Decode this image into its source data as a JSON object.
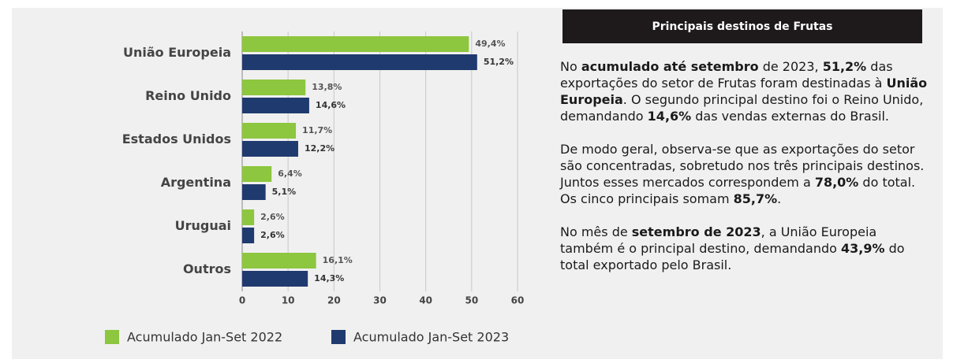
{
  "chart_data": {
    "type": "barh",
    "categories": [
      "União Europeia",
      "Reino Unido",
      "Estados Unidos",
      "Argentina",
      "Uruguai",
      "Outros"
    ],
    "series": [
      {
        "name": "Acumulado Jan-Set 2022",
        "color": "#8dc63f",
        "values": [
          49.4,
          13.8,
          11.7,
          6.4,
          2.6,
          16.1
        ],
        "value_labels": [
          "49,4%",
          "13,8%",
          "11,7%",
          "6,4%",
          "2,6%",
          "16,1%"
        ]
      },
      {
        "name": "Acumulado Jan-Set 2023",
        "color": "#1f3a6e",
        "values": [
          51.2,
          14.6,
          12.2,
          5.1,
          2.6,
          14.3
        ],
        "value_labels": [
          "51,2%",
          "14,6%",
          "12,2%",
          "5,1%",
          "2,6%",
          "14,3%"
        ]
      }
    ],
    "xlim": [
      0,
      60
    ],
    "xticks": [
      0,
      10,
      20,
      30,
      40,
      50,
      60
    ],
    "grid": true,
    "legend": "bottom"
  },
  "panel": {
    "title": "Principais destinos de Frutas",
    "paragraphs": [
      [
        {
          "text": "No ",
          "bold": false
        },
        {
          "text": "acumulado até setembro",
          "bold": true
        },
        {
          "text": " de 2023, ",
          "bold": false
        },
        {
          "text": "51,2%",
          "bold": true
        },
        {
          "text": " das exportações do setor de Frutas foram destinadas à ",
          "bold": false
        },
        {
          "text": "União Europeia",
          "bold": true
        },
        {
          "text": ". O segundo principal destino foi o Reino Unido, demandando ",
          "bold": false
        },
        {
          "text": "14,6%",
          "bold": true
        },
        {
          "text": " das vendas externas do Brasil.",
          "bold": false
        }
      ],
      [
        {
          "text": "De modo geral, observa-se que as exportações do setor são concentradas, sobretudo nos três principais destinos. Juntos esses mercados correspondem a ",
          "bold": false
        },
        {
          "text": "78,0%",
          "bold": true
        },
        {
          "text": " do total. Os cinco principais somam ",
          "bold": false
        },
        {
          "text": "85,7%",
          "bold": true
        },
        {
          "text": ".",
          "bold": false
        }
      ],
      [
        {
          "text": "No mês de ",
          "bold": false
        },
        {
          "text": "setembro de 2023",
          "bold": true
        },
        {
          "text": ", a União Europeia também é o principal destino, demandando ",
          "bold": false
        },
        {
          "text": "43,9%",
          "bold": true
        },
        {
          "text": " do total exportado pelo Brasil.",
          "bold": false
        }
      ]
    ]
  }
}
